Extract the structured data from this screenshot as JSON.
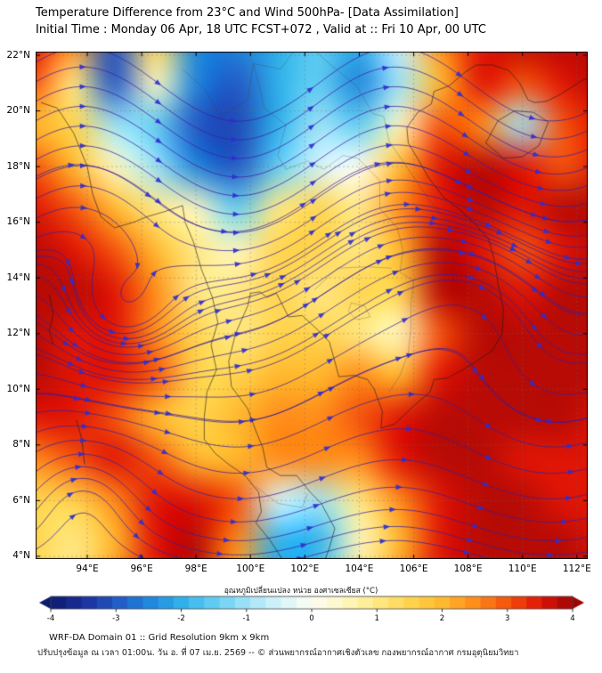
{
  "header": {
    "title": "Temperature Difference from 23°C and Wind 500hPa- [Data Assimilation]",
    "subtitle": "Initial Time : Monday 06 Apr, 18 UTC FCST+072 , Valid at ::  Fri 10 Apr, 00 UTC"
  },
  "footer": {
    "line1": "WRF-DA Domain 01 :: Grid Resolution 9km x 9km",
    "line2": "ปรับปรุงข้อมูล ณ เวลา 01:00น. วัน อ. ที่ 07 เม.ย. 2569 -- © ส่วนพยากรณ์อากาศเชิงตัวเลข กองพยากรณ์อากาศ กรมอุตุนิยมวิทยา"
  },
  "chart_data": {
    "type": "heatmap",
    "title": "Temperature Difference from 23°C and Wind 500hPa- [Data Assimilation]",
    "subtitle": "Initial Time : Monday 06 Apr, 18 UTC FCST+072 , Valid at ::  Fri 10 Apr, 00 UTC",
    "lon_range": [
      92.1,
      112.4
    ],
    "lat_range": [
      22.13,
      3.9
    ],
    "x_ticks": {
      "values": [
        94,
        96,
        98,
        100,
        102,
        104,
        106,
        108,
        110,
        112
      ],
      "labels": [
        "94°E",
        "96°E",
        "98°E",
        "100°E",
        "102°E",
        "104°E",
        "106°E",
        "108°E",
        "110°E",
        "112°E"
      ]
    },
    "y_ticks": {
      "values": [
        22,
        20,
        18,
        16,
        14,
        12,
        10,
        8,
        6,
        4
      ],
      "labels": [
        "22°N",
        "20°N",
        "18°N",
        "16°N",
        "14°N",
        "12°N",
        "10°N",
        "8°N",
        "6°N",
        "4°N"
      ]
    },
    "grid": {
      "lon_start": 92,
      "lon_step": 1.5,
      "lat_start": 22.5,
      "lat_step": -1.5,
      "units": "°C",
      "values": [
        [
          3.5,
          2.5,
          -3,
          1.5,
          -2.5,
          -2.5,
          -2,
          -1.5,
          -2,
          -0.5,
          2.5,
          3.5,
          3.8,
          3.8,
          3.8
        ],
        [
          3,
          1,
          -3,
          0.5,
          -2.5,
          -3,
          -2,
          -1.5,
          -2.5,
          -1,
          2,
          3.5,
          3,
          3.5,
          3.8
        ],
        [
          2,
          1.5,
          -1,
          -1.5,
          -3,
          -3.2,
          -2,
          -1,
          -1.5,
          0.5,
          3,
          2.5,
          -1,
          3,
          3.5
        ],
        [
          3,
          2,
          0.5,
          -1,
          -2.5,
          -3,
          -1.5,
          -0.5,
          0,
          2,
          3.5,
          3.8,
          3.5,
          3,
          3.5
        ],
        [
          3.5,
          3,
          2,
          1,
          0.5,
          -1.5,
          1,
          1.5,
          1,
          2.5,
          3.5,
          3.8,
          3.5,
          3.8,
          3.8
        ],
        [
          3.8,
          3.5,
          3,
          2,
          1,
          0.5,
          1.5,
          1.5,
          1,
          2,
          3.8,
          3.5,
          3,
          3.5,
          3.8
        ],
        [
          3.8,
          3.8,
          3.5,
          2.5,
          1,
          1,
          1.5,
          1,
          1.5,
          1.5,
          3.8,
          3.8,
          3.5,
          3.8,
          3.8
        ],
        [
          3.8,
          3.5,
          3.5,
          2.5,
          1.5,
          1,
          1.5,
          1.5,
          1,
          0.5,
          3,
          3.8,
          3.8,
          3.8,
          3.8
        ],
        [
          3.8,
          3.5,
          3.5,
          3,
          1.5,
          1.5,
          2,
          2,
          2.5,
          2,
          3.5,
          3.8,
          3.8,
          3.8,
          3.8
        ],
        [
          3.5,
          3.5,
          3,
          2,
          1.5,
          2,
          2.5,
          2.5,
          3,
          3.5,
          3.8,
          3.8,
          3.8,
          3.8,
          3.5
        ],
        [
          2.5,
          3,
          3.5,
          3,
          2,
          2,
          2.5,
          2.5,
          2.5,
          3.5,
          3.8,
          3.8,
          3.5,
          3.5,
          3.5
        ],
        [
          1.5,
          1.5,
          2.5,
          3.5,
          3.5,
          3,
          -0.5,
          -1,
          1,
          2.5,
          3.5,
          3.8,
          3.8,
          3.5,
          3.5
        ],
        [
          1.5,
          1,
          2,
          3.5,
          3.8,
          2.5,
          -2,
          -2,
          0.5,
          2,
          3.5,
          3.8,
          3.8,
          3.8,
          3.5
        ],
        [
          1.5,
          1,
          2.5,
          3.5,
          3.8,
          2,
          -2,
          -1.5,
          1,
          2.5,
          3.5,
          3.8,
          3.8,
          3.8,
          3.5
        ]
      ]
    },
    "colormap": [
      [
        -4,
        "#0d1b6e"
      ],
      [
        -3.5,
        "#1a2f9c"
      ],
      [
        -3,
        "#2457c4"
      ],
      [
        -2.5,
        "#1f86dc"
      ],
      [
        -2,
        "#2fb0ea"
      ],
      [
        -1.5,
        "#62cdf2"
      ],
      [
        -1,
        "#9fe2f6"
      ],
      [
        -0.5,
        "#d4f3f8"
      ],
      [
        0,
        "#fdfdf3"
      ],
      [
        0.5,
        "#fdf6c0"
      ],
      [
        1,
        "#ffe884"
      ],
      [
        1.5,
        "#ffd44e"
      ],
      [
        2,
        "#ffb92e"
      ],
      [
        2.5,
        "#ff8c1a"
      ],
      [
        3,
        "#f4530e"
      ],
      [
        3.5,
        "#e01505"
      ],
      [
        4,
        "#9e0505"
      ]
    ],
    "colorbar": {
      "label": "อุณหภูมิเปลี่ยนแปลง หน่วย องศาเซลเซียส (°C)",
      "ticks": [
        -4,
        -3,
        -2,
        -1,
        0,
        1,
        2,
        3,
        4
      ]
    },
    "wind_model": {
      "u_base": 8,
      "u_shear": 0.45,
      "wave": {
        "amplitude_base": 2.0,
        "amplitude_shear": 0.55,
        "wavelength_deg": 11.5,
        "trough_lon": 99.5
      },
      "vortices": [
        {
          "lon": 95.0,
          "lat": 12.4,
          "strength": 90,
          "radius": 2.6
        },
        {
          "lon": 108.6,
          "lat": 13.4,
          "strength": -55,
          "radius": 3.0
        },
        {
          "lon": 93.8,
          "lat": 6.6,
          "strength": -30,
          "radius": 2.2
        }
      ],
      "seed_start_lat": 4.25,
      "seed_step": 0.7,
      "extra_seeds": [
        [
          93.2,
          13.5
        ],
        [
          93.4,
          10.9
        ],
        [
          96.5,
          12.4
        ],
        [
          107.2,
          11.4
        ],
        [
          106.6,
          15.0
        ],
        [
          110.3,
          16.3
        ]
      ],
      "line_color": "#3a1e9e",
      "arrow_color": "#2f2fd0"
    },
    "map_lines": [
      {
        "kind": "coast",
        "pts": [
          [
            92.3,
            20.3
          ],
          [
            92.9,
            20.1
          ],
          [
            93.5,
            19.2
          ],
          [
            94.0,
            18.0
          ],
          [
            94.2,
            17.0
          ],
          [
            94.5,
            16.2
          ],
          [
            95.0,
            15.8
          ],
          [
            95.7,
            16.0
          ],
          [
            96.2,
            16.2
          ],
          [
            96.9,
            16.4
          ],
          [
            97.5,
            16.6
          ],
          [
            97.6,
            16.0
          ],
          [
            97.9,
            15.3
          ],
          [
            98.2,
            14.3
          ],
          [
            98.6,
            13.3
          ],
          [
            98.8,
            12.4
          ],
          [
            98.55,
            11.6
          ],
          [
            98.75,
            10.7
          ],
          [
            98.4,
            9.9
          ],
          [
            98.3,
            9.0
          ],
          [
            98.3,
            8.2
          ],
          [
            98.7,
            7.7
          ],
          [
            99.2,
            7.3
          ],
          [
            99.8,
            6.9
          ],
          [
            100.3,
            6.3
          ],
          [
            100.4,
            5.6
          ],
          [
            100.2,
            5.2
          ],
          [
            100.7,
            4.6
          ],
          [
            101.1,
            4.0
          ],
          [
            101.35,
            3.5
          ]
        ]
      },
      {
        "kind": "coast",
        "pts": [
          [
            102.6,
            3.5
          ],
          [
            102.9,
            4.3
          ],
          [
            103.1,
            5.0
          ],
          [
            102.6,
            5.9
          ],
          [
            102.2,
            6.3
          ],
          [
            101.7,
            6.9
          ],
          [
            101.1,
            6.9
          ],
          [
            100.6,
            7.2
          ],
          [
            100.45,
            7.9
          ],
          [
            100.2,
            8.5
          ],
          [
            99.9,
            9.3
          ],
          [
            99.3,
            10.1
          ],
          [
            99.2,
            11.0
          ],
          [
            99.45,
            12.0
          ],
          [
            99.9,
            13.0
          ],
          [
            100.0,
            13.45
          ],
          [
            100.35,
            13.5
          ],
          [
            100.6,
            13.3
          ],
          [
            100.95,
            13.45
          ],
          [
            101.4,
            12.6
          ],
          [
            101.9,
            12.65
          ],
          [
            102.4,
            12.2
          ],
          [
            102.9,
            11.7
          ],
          [
            103.1,
            11.0
          ],
          [
            103.25,
            10.45
          ],
          [
            103.8,
            10.5
          ],
          [
            104.3,
            10.35
          ],
          [
            104.55,
            10.0
          ],
          [
            104.85,
            9.2
          ],
          [
            104.8,
            8.6
          ],
          [
            105.3,
            8.75
          ],
          [
            106.0,
            9.4
          ],
          [
            106.6,
            9.9
          ],
          [
            106.75,
            10.35
          ],
          [
            107.25,
            10.4
          ],
          [
            107.8,
            10.7
          ],
          [
            108.3,
            11.0
          ],
          [
            108.9,
            11.4
          ],
          [
            109.25,
            12.0
          ],
          [
            109.3,
            12.9
          ],
          [
            109.1,
            13.8
          ],
          [
            108.95,
            14.7
          ],
          [
            108.75,
            15.4
          ],
          [
            108.25,
            15.95
          ],
          [
            107.7,
            16.45
          ],
          [
            107.1,
            16.9
          ],
          [
            106.55,
            17.6
          ],
          [
            106.2,
            18.2
          ],
          [
            105.8,
            18.85
          ],
          [
            105.75,
            19.4
          ],
          [
            106.15,
            19.95
          ],
          [
            106.65,
            20.25
          ],
          [
            106.75,
            20.7
          ],
          [
            107.3,
            20.9
          ],
          [
            107.9,
            21.4
          ],
          [
            108.3,
            21.65
          ],
          [
            108.9,
            21.65
          ],
          [
            109.5,
            21.45
          ],
          [
            109.9,
            21.0
          ],
          [
            110.2,
            20.4
          ],
          [
            110.45,
            20.3
          ],
          [
            110.9,
            20.35
          ],
          [
            111.4,
            20.6
          ],
          [
            112.2,
            21.1
          ],
          [
            113.0,
            21.4
          ]
        ]
      },
      {
        "kind": "coast",
        "pts": [
          [
            108.65,
            18.85
          ],
          [
            109.1,
            19.65
          ],
          [
            109.7,
            20.0
          ],
          [
            110.4,
            19.95
          ],
          [
            110.95,
            19.6
          ],
          [
            110.6,
            18.75
          ],
          [
            110.0,
            18.35
          ],
          [
            109.3,
            18.3
          ],
          [
            108.65,
            18.85
          ]
        ]
      },
      {
        "kind": "border",
        "pts": [
          [
            100.1,
            21.7
          ],
          [
            100.35,
            20.8
          ],
          [
            100.5,
            20.1
          ],
          [
            101.3,
            19.5
          ],
          [
            101.0,
            18.4
          ],
          [
            101.3,
            17.9
          ],
          [
            102.1,
            18.2
          ],
          [
            102.7,
            17.9
          ],
          [
            103.4,
            18.4
          ],
          [
            103.95,
            18.3
          ],
          [
            104.75,
            17.5
          ],
          [
            104.75,
            16.5
          ],
          [
            105.4,
            15.8
          ],
          [
            105.6,
            15.0
          ],
          [
            105.5,
            14.2
          ],
          [
            106.0,
            13.9
          ],
          [
            105.9,
            13.1
          ],
          [
            105.9,
            12.2
          ],
          [
            105.8,
            11.3
          ],
          [
            105.5,
            10.5
          ],
          [
            105.1,
            9.9
          ]
        ]
      },
      {
        "kind": "border",
        "pts": [
          [
            102.1,
            22.4
          ],
          [
            102.9,
            21.7
          ],
          [
            103.9,
            20.9
          ],
          [
            104.5,
            19.9
          ],
          [
            104.9,
            19.8
          ],
          [
            105.1,
            18.9
          ],
          [
            105.6,
            18.2
          ],
          [
            106.5,
            16.9
          ],
          [
            107.0,
            16.3
          ],
          [
            107.45,
            16.0
          ]
        ]
      },
      {
        "kind": "border",
        "pts": [
          [
            102.35,
            13.57
          ],
          [
            103.2,
            14.35
          ],
          [
            104.3,
            14.4
          ],
          [
            105.2,
            14.35
          ]
        ]
      },
      {
        "kind": "border",
        "pts": [
          [
            97.5,
            21.5
          ],
          [
            98.3,
            20.8
          ],
          [
            98.9,
            19.8
          ],
          [
            99.9,
            20.4
          ],
          [
            100.1,
            21.7
          ],
          [
            101.1,
            21.5
          ],
          [
            101.8,
            22.4
          ]
        ]
      },
      {
        "kind": "border",
        "pts": [
          [
            100.2,
            6.5
          ],
          [
            101.0,
            5.9
          ],
          [
            101.9,
            5.75
          ],
          [
            102.1,
            6.25
          ]
        ]
      },
      {
        "kind": "border",
        "pts": [
          [
            103.7,
            13.1
          ],
          [
            104.2,
            13.0
          ],
          [
            104.4,
            12.6
          ],
          [
            103.9,
            12.5
          ],
          [
            103.6,
            12.8
          ],
          [
            103.7,
            13.1
          ]
        ]
      },
      {
        "kind": "coast",
        "pts": [
          [
            92.6,
            13.4
          ],
          [
            92.75,
            12.7
          ],
          [
            92.6,
            12.1
          ],
          [
            92.75,
            11.6
          ]
        ]
      },
      {
        "kind": "coast",
        "pts": [
          [
            93.6,
            8.9
          ],
          [
            93.8,
            8.2
          ],
          [
            93.9,
            7.3
          ]
        ]
      }
    ]
  }
}
